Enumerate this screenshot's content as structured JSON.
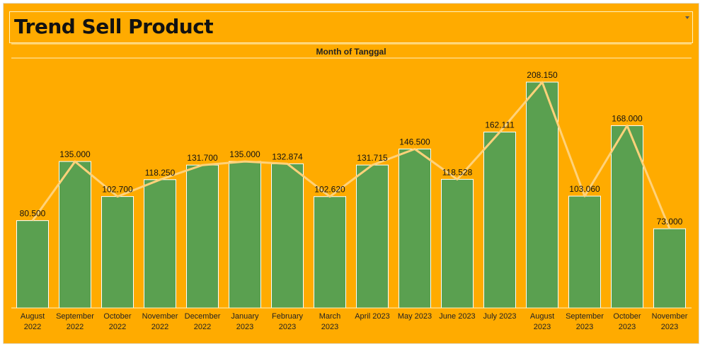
{
  "title": "Trend Sell Product",
  "chart_data": {
    "type": "bar",
    "title": "Trend Sell Product",
    "header_label": "Month of Tanggal",
    "categories": [
      [
        "August",
        "2022"
      ],
      [
        "September",
        "2022"
      ],
      [
        "October",
        "2022"
      ],
      [
        "November",
        "2022"
      ],
      [
        "December",
        "2022"
      ],
      [
        "January",
        "2023"
      ],
      [
        "February",
        "2023"
      ],
      [
        "March",
        "2023"
      ],
      [
        "April 2023"
      ],
      [
        "May 2023"
      ],
      [
        "June 2023"
      ],
      [
        "July 2023"
      ],
      [
        "August",
        "2023"
      ],
      [
        "September",
        "2023"
      ],
      [
        "October",
        "2023"
      ],
      [
        "November",
        "2023"
      ]
    ],
    "values": [
      80500,
      135000,
      102700,
      118250,
      131700,
      135000,
      132874,
      102620,
      131715,
      146500,
      118528,
      162111,
      208150,
      103060,
      168000,
      73000
    ],
    "labels": [
      "80.500",
      "135.000",
      "102.700",
      "118.250",
      "131.700",
      "135.000",
      "132.874",
      "102.620",
      "131.715",
      "146.500",
      "118.528",
      "162.111",
      "208.150",
      "103.060",
      "168.000",
      "73.000"
    ],
    "overlay": "line",
    "ylim": [
      0,
      220000
    ],
    "grid": false,
    "colors": {
      "bar": "#5aa050",
      "line": "#ffd27a",
      "background": "#ffab00"
    }
  }
}
